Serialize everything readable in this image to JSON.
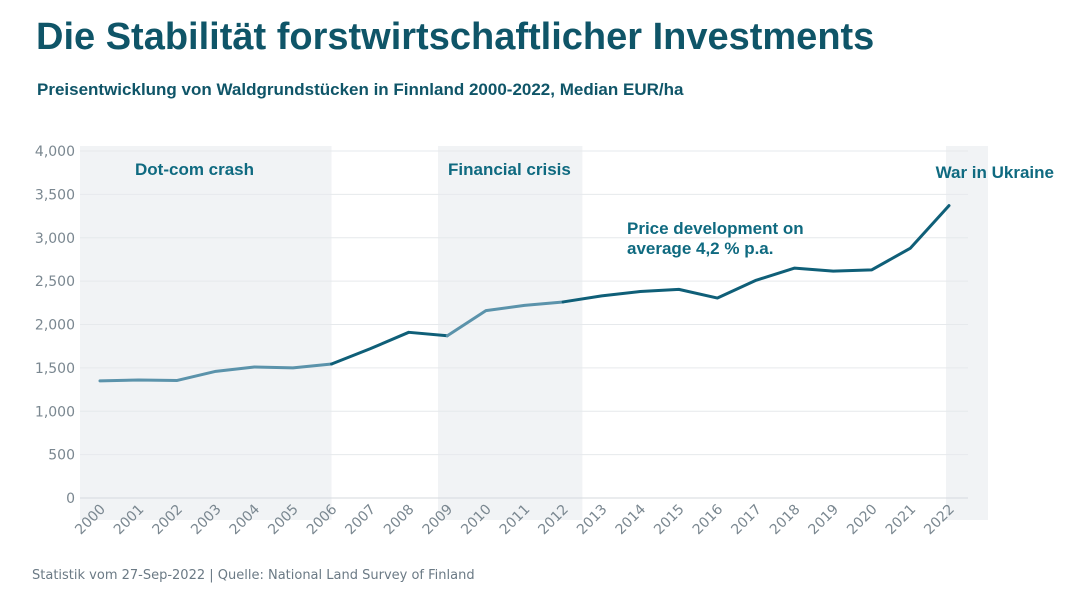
{
  "header": {
    "title": "Die Stabilität forstwirtschaftlicher Investments",
    "subtitle": "Preisentwicklung von Waldgrundstücken in Finnland 2000-2022, Median EUR/ha"
  },
  "footer": {
    "source": "Statistik vom 27-Sep-2022 | Quelle: National Land Survey of Finland"
  },
  "colors": {
    "dark_line": "#0f5f78",
    "light_line": "#5b93ab",
    "band": "#f1f3f5",
    "grid": "#e6e9ec"
  },
  "chart_data": {
    "type": "line",
    "x": [
      "2000",
      "2001",
      "2002",
      "2003",
      "2004",
      "2005",
      "2006",
      "2007",
      "2008",
      "2009",
      "2010",
      "2011",
      "2012",
      "2013",
      "2014",
      "2015",
      "2016",
      "2017",
      "2018",
      "2019",
      "2020",
      "2021",
      "2022"
    ],
    "values": [
      1350,
      1360,
      1355,
      1460,
      1510,
      1500,
      1545,
      1720,
      1910,
      1870,
      2160,
      2220,
      2260,
      2330,
      2380,
      2405,
      2305,
      2510,
      2650,
      2615,
      2630,
      2880,
      3370
    ],
    "ylim": [
      0,
      4000
    ],
    "yticks": [
      0,
      500,
      1000,
      1500,
      2000,
      2500,
      3000,
      3500,
      4000
    ],
    "ytick_labels": [
      "0",
      "500",
      "1,000",
      "1,500",
      "2,000",
      "2,500",
      "3,000",
      "3,500",
      "4,000"
    ],
    "grid": true,
    "shaded_periods": [
      {
        "label": "Dot-com crash",
        "start": "2000",
        "end": "2006"
      },
      {
        "label": "Financial crisis",
        "start": "2009",
        "end": "2012"
      },
      {
        "label": "War in Ukraine",
        "start": "2022",
        "end": "2022"
      }
    ],
    "annotations": [
      {
        "lines": [
          "Price development on",
          "average 4,2 % p.a."
        ]
      }
    ]
  }
}
